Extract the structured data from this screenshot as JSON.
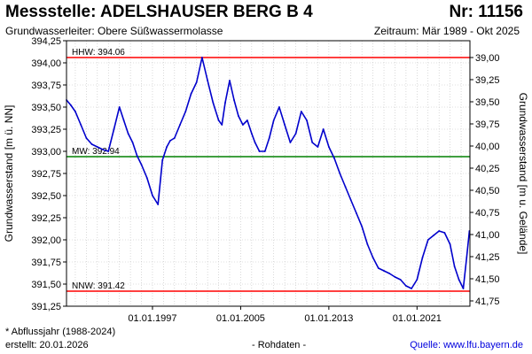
{
  "header": {
    "title": "Messstelle: ADELSHAUSER BERG B 4",
    "number": "Nr: 11156",
    "aquifer": "Grundwasserleiter:   Obere Süßwassermolasse",
    "period": "Zeitraum: Mär 1989 - Okt 2025"
  },
  "footer": {
    "note": "* Abflussjahr (1988-2024)",
    "created": "erstellt:  20.01.2026",
    "raw": "- Rohdaten -",
    "source_label": "Quelle: ",
    "source_url": "www.lfu.bayern.de"
  },
  "colors": {
    "series": "#0000cc",
    "hhw": "#ff0000",
    "nnw": "#ff0000",
    "mw": "#008000",
    "grid": "#c0c0c0"
  },
  "chart_data": {
    "type": "line",
    "ylabel": "Grundwasserstand [m ü. NN]",
    "ylabel_right": "Grundwasserstand [m u. Gelände]",
    "ylim": [
      391.25,
      394.125
    ],
    "xlim": [
      1989.2,
      2025.8
    ],
    "y_ticks": [
      "391,25",
      "391,50",
      "391,75",
      "392,00",
      "392,25",
      "392,50",
      "392,75",
      "393,00",
      "393,25",
      "393,50",
      "393,75",
      "394,00",
      "394,25"
    ],
    "y_tick_values": [
      391.25,
      391.5,
      391.75,
      392.0,
      392.25,
      392.5,
      392.75,
      393.0,
      393.25,
      393.5,
      393.75,
      394.0,
      394.25
    ],
    "y2_ticks": [
      "39,00",
      "39,25",
      "39,50",
      "39,75",
      "40,00",
      "40,25",
      "40,50",
      "40,75",
      "41,00",
      "41,25",
      "41,50",
      "41,75"
    ],
    "y2_tick_values": [
      39.0,
      39.25,
      39.5,
      39.75,
      40.0,
      40.25,
      40.5,
      40.75,
      41.0,
      41.25,
      41.5,
      41.75
    ],
    "ground_level": 433.06,
    "x_ticks": [
      "01.01.1997",
      "01.01.2005",
      "01.01.2013",
      "01.01.2021"
    ],
    "x_tick_values": [
      1997.0,
      2005.0,
      2013.0,
      2021.0
    ],
    "x_grid_values": [
      1989,
      1990,
      1991,
      1992,
      1993,
      1994,
      1995,
      1996,
      1997,
      1998,
      1999,
      2000,
      2001,
      2002,
      2003,
      2004,
      2005,
      2006,
      2007,
      2008,
      2009,
      2010,
      2011,
      2012,
      2013,
      2014,
      2015,
      2016,
      2017,
      2018,
      2019,
      2020,
      2021,
      2022,
      2023,
      2024,
      2025
    ],
    "reference_lines": [
      {
        "label": "HHW: 394.06",
        "value": 394.06,
        "color": "#ff0000"
      },
      {
        "label": "MW: 392.94",
        "value": 392.94,
        "color": "#008000"
      },
      {
        "label": "NNW: 391.42",
        "value": 391.42,
        "color": "#ff0000"
      }
    ],
    "series": [
      {
        "color": "#0000cc",
        "x": [
          1989.2,
          1989.6,
          1990.0,
          1990.5,
          1991.0,
          1991.5,
          1992.0,
          1992.5,
          1993.0,
          1993.5,
          1994.0,
          1994.4,
          1994.8,
          1995.2,
          1995.6,
          1996.0,
          1996.5,
          1997.0,
          1997.5,
          1997.9,
          1998.3,
          1998.6,
          1999.0,
          1999.5,
          2000.0,
          2000.5,
          2001.0,
          2001.5,
          2002.0,
          2002.5,
          2003.0,
          2003.3,
          2003.6,
          2004.0,
          2004.4,
          2004.8,
          2005.2,
          2005.6,
          2006.0,
          2006.3,
          2006.7,
          2007.2,
          2007.6,
          2008.0,
          2008.5,
          2009.0,
          2009.5,
          2010.0,
          2010.5,
          2011.0,
          2011.5,
          2012.0,
          2012.5,
          2013.0,
          2013.5,
          2014.0,
          2014.5,
          2015.0,
          2015.5,
          2016.0,
          2016.5,
          2017.0,
          2017.5,
          2018.0,
          2018.5,
          2019.0,
          2019.5,
          2020.0,
          2020.5,
          2021.0,
          2021.5,
          2022.0,
          2022.5,
          2023.0,
          2023.5,
          2024.0,
          2024.4,
          2024.8,
          2025.2,
          2025.5,
          2025.75
        ],
        "values": [
          393.58,
          393.52,
          393.45,
          393.3,
          393.15,
          393.08,
          393.05,
          393.02,
          393.0,
          393.25,
          393.5,
          393.35,
          393.2,
          393.1,
          392.95,
          392.85,
          392.7,
          392.5,
          392.4,
          392.9,
          393.05,
          393.12,
          393.15,
          393.3,
          393.45,
          393.65,
          393.78,
          394.06,
          393.8,
          393.55,
          393.35,
          393.3,
          393.55,
          393.8,
          393.58,
          393.4,
          393.3,
          393.35,
          393.2,
          393.1,
          393.0,
          393.0,
          393.15,
          393.35,
          393.5,
          393.3,
          393.1,
          393.2,
          393.45,
          393.35,
          393.1,
          393.05,
          393.25,
          393.05,
          392.92,
          392.75,
          392.6,
          392.45,
          392.3,
          392.15,
          391.95,
          391.8,
          391.68,
          391.65,
          391.62,
          391.58,
          391.55,
          391.48,
          391.45,
          391.55,
          391.8,
          392.0,
          392.05,
          392.1,
          392.08,
          391.95,
          391.7,
          391.55,
          391.45,
          391.8,
          392.1
        ]
      }
    ]
  }
}
